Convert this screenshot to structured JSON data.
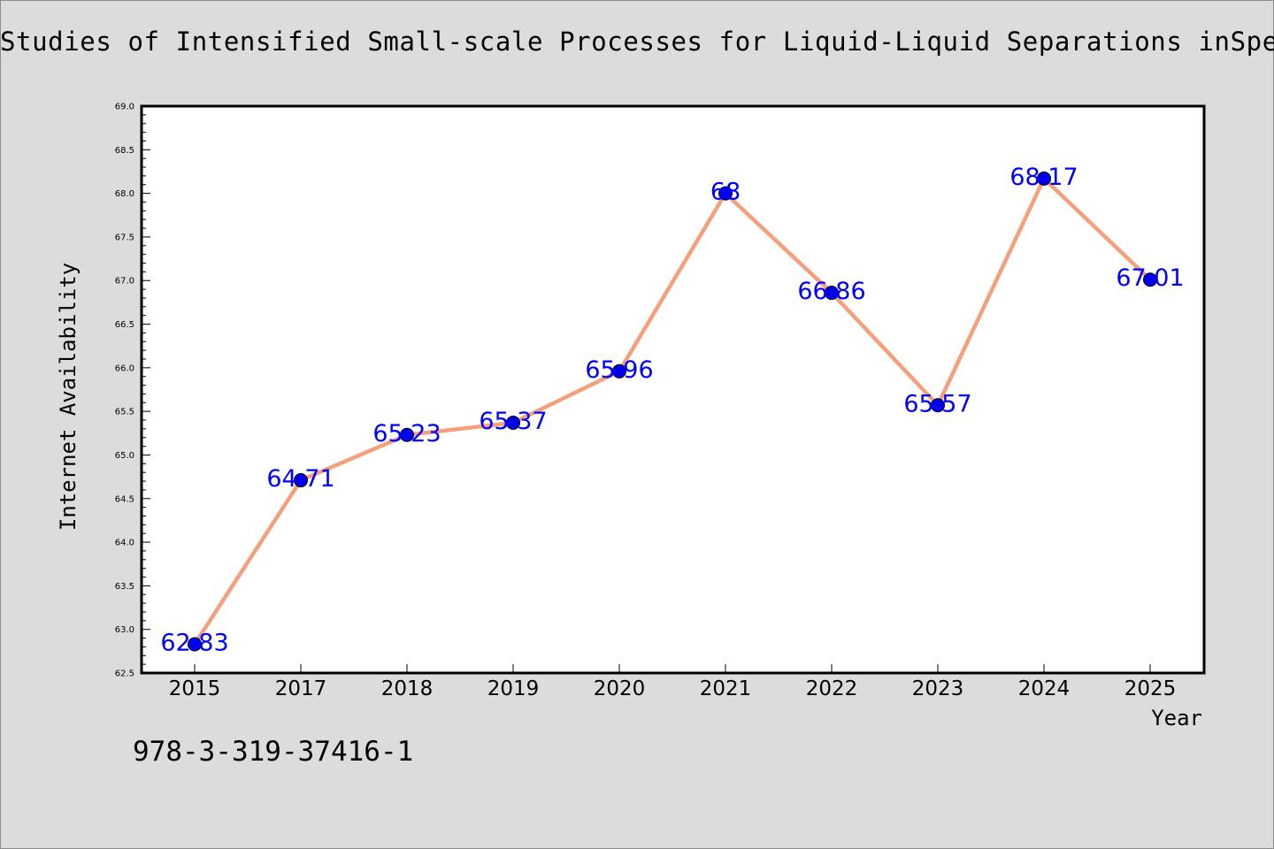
{
  "chart_data": {
    "type": "line",
    "title": "Studies of Intensified Small-scale Processes for Liquid-Liquid Separations inSpe",
    "xlabel": "Year",
    "ylabel": "Internet Availability",
    "categories": [
      "2015",
      "2017",
      "2018",
      "2019",
      "2020",
      "2021",
      "2022",
      "2023",
      "2024",
      "2025"
    ],
    "series": [
      {
        "values": [
          62.83,
          64.71,
          65.23,
          65.37,
          65.96,
          68,
          66.86,
          65.57,
          68.17,
          67.01
        ],
        "labels": [
          "62.83",
          "64.71",
          "65.23",
          "65.37",
          "65.96",
          "68",
          "66.86",
          "65.57",
          "68.17",
          "67.01"
        ]
      }
    ],
    "ylim": [
      62.5,
      69.0
    ],
    "y_ticks": [
      "62.5",
      "63.0",
      "63.5",
      "64.0",
      "64.5",
      "65.0",
      "65.5",
      "66.0",
      "66.5",
      "67.0",
      "67.5",
      "68.0",
      "68.5",
      "69.0"
    ],
    "grid": false,
    "legend": "none",
    "colors": {
      "line": "#f4a07c",
      "marker": "#0000ee",
      "data_label": "#0000ff",
      "background": "#dcdcdc",
      "plot_area": "#ffffff"
    }
  },
  "footer": {
    "isbn": "978-3-319-37416-1"
  }
}
